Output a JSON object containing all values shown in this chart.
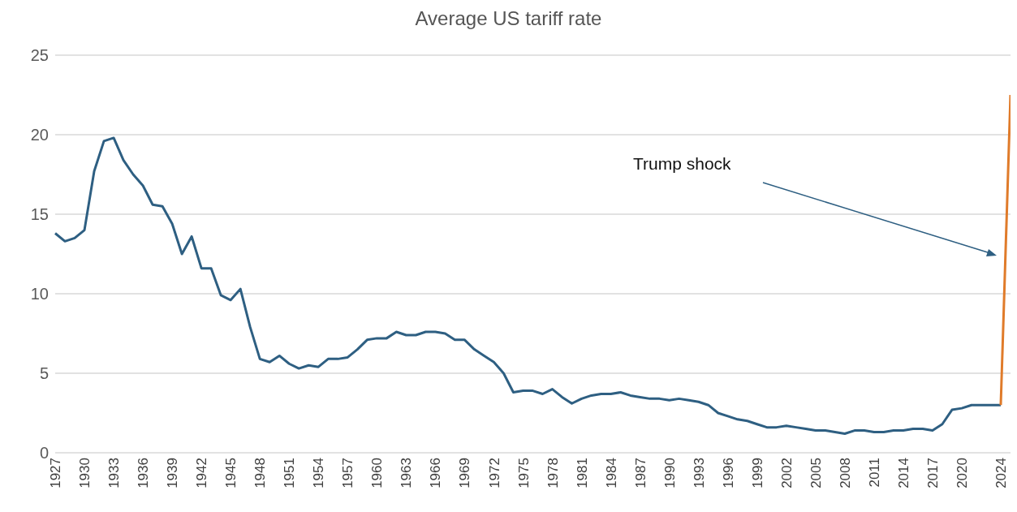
{
  "chart_data": {
    "type": "line",
    "title": "Average US tariff rate",
    "categories": [
      "1927",
      null,
      null,
      "1930",
      null,
      null,
      "1933",
      null,
      null,
      "1936",
      null,
      null,
      "1939",
      null,
      null,
      "1942",
      null,
      null,
      "1945",
      null,
      null,
      "1948",
      null,
      null,
      "1951",
      null,
      null,
      "1954",
      null,
      null,
      "1957",
      null,
      null,
      "1960",
      null,
      null,
      "1963",
      null,
      null,
      "1966",
      null,
      null,
      "1969",
      null,
      null,
      "1972",
      null,
      null,
      "1975",
      null,
      null,
      "1978",
      null,
      null,
      "1981",
      null,
      null,
      "1984",
      null,
      null,
      "1987",
      null,
      null,
      "1990",
      null,
      null,
      "1993",
      null,
      null,
      "1996",
      null,
      null,
      "1999",
      null,
      null,
      "2002",
      null,
      null,
      "2005",
      null,
      null,
      "2008",
      null,
      null,
      "2011",
      null,
      null,
      "2014",
      null,
      null,
      "2017",
      null,
      null,
      "2020",
      null,
      null,
      null,
      "2024",
      null
    ],
    "series": [
      {
        "color": "#2e5f82",
        "values": [
          13.8,
          13.3,
          13.5,
          14.0,
          17.7,
          19.6,
          19.8,
          18.4,
          17.5,
          16.8,
          15.6,
          15.5,
          14.4,
          12.5,
          13.6,
          11.6,
          11.6,
          9.9,
          9.6,
          10.3,
          7.9,
          5.9,
          5.7,
          6.1,
          5.6,
          5.3,
          5.5,
          5.4,
          5.9,
          5.9,
          6.0,
          6.5,
          7.1,
          7.2,
          7.2,
          7.6,
          7.4,
          7.4,
          7.6,
          7.6,
          7.5,
          7.1,
          7.1,
          6.5,
          6.1,
          5.7,
          5.0,
          3.8,
          3.9,
          3.9,
          3.7,
          4.0,
          3.5,
          3.1,
          3.4,
          3.6,
          3.7,
          3.7,
          3.8,
          3.6,
          3.5,
          3.4,
          3.4,
          3.3,
          3.4,
          3.3,
          3.2,
          3.0,
          2.5,
          2.3,
          2.1,
          2.0,
          1.8,
          1.6,
          1.6,
          1.7,
          1.6,
          1.5,
          1.4,
          1.4,
          1.3,
          1.2,
          1.4,
          1.4,
          1.3,
          1.3,
          1.4,
          1.4,
          1.5,
          1.5,
          1.4,
          1.8,
          2.7,
          2.8,
          3.0,
          3.0,
          3.0,
          3.0,
          null
        ]
      },
      {
        "color": "#e07b2a",
        "values": [
          null,
          null,
          null,
          null,
          null,
          null,
          null,
          null,
          null,
          null,
          null,
          null,
          null,
          null,
          null,
          null,
          null,
          null,
          null,
          null,
          null,
          null,
          null,
          null,
          null,
          null,
          null,
          null,
          null,
          null,
          null,
          null,
          null,
          null,
          null,
          null,
          null,
          null,
          null,
          null,
          null,
          null,
          null,
          null,
          null,
          null,
          null,
          null,
          null,
          null,
          null,
          null,
          null,
          null,
          null,
          null,
          null,
          null,
          null,
          null,
          null,
          null,
          null,
          null,
          null,
          null,
          null,
          null,
          null,
          null,
          null,
          null,
          null,
          null,
          null,
          null,
          null,
          null,
          null,
          null,
          null,
          null,
          null,
          null,
          null,
          null,
          null,
          null,
          null,
          null,
          null,
          null,
          null,
          null,
          null,
          null,
          null,
          3.0,
          22.5
        ]
      }
    ],
    "ylim": [
      0,
      25
    ],
    "yticks": [
      0,
      5,
      10,
      15,
      20,
      25
    ],
    "grid": "y",
    "annotations": [
      "Trump shock"
    ]
  }
}
